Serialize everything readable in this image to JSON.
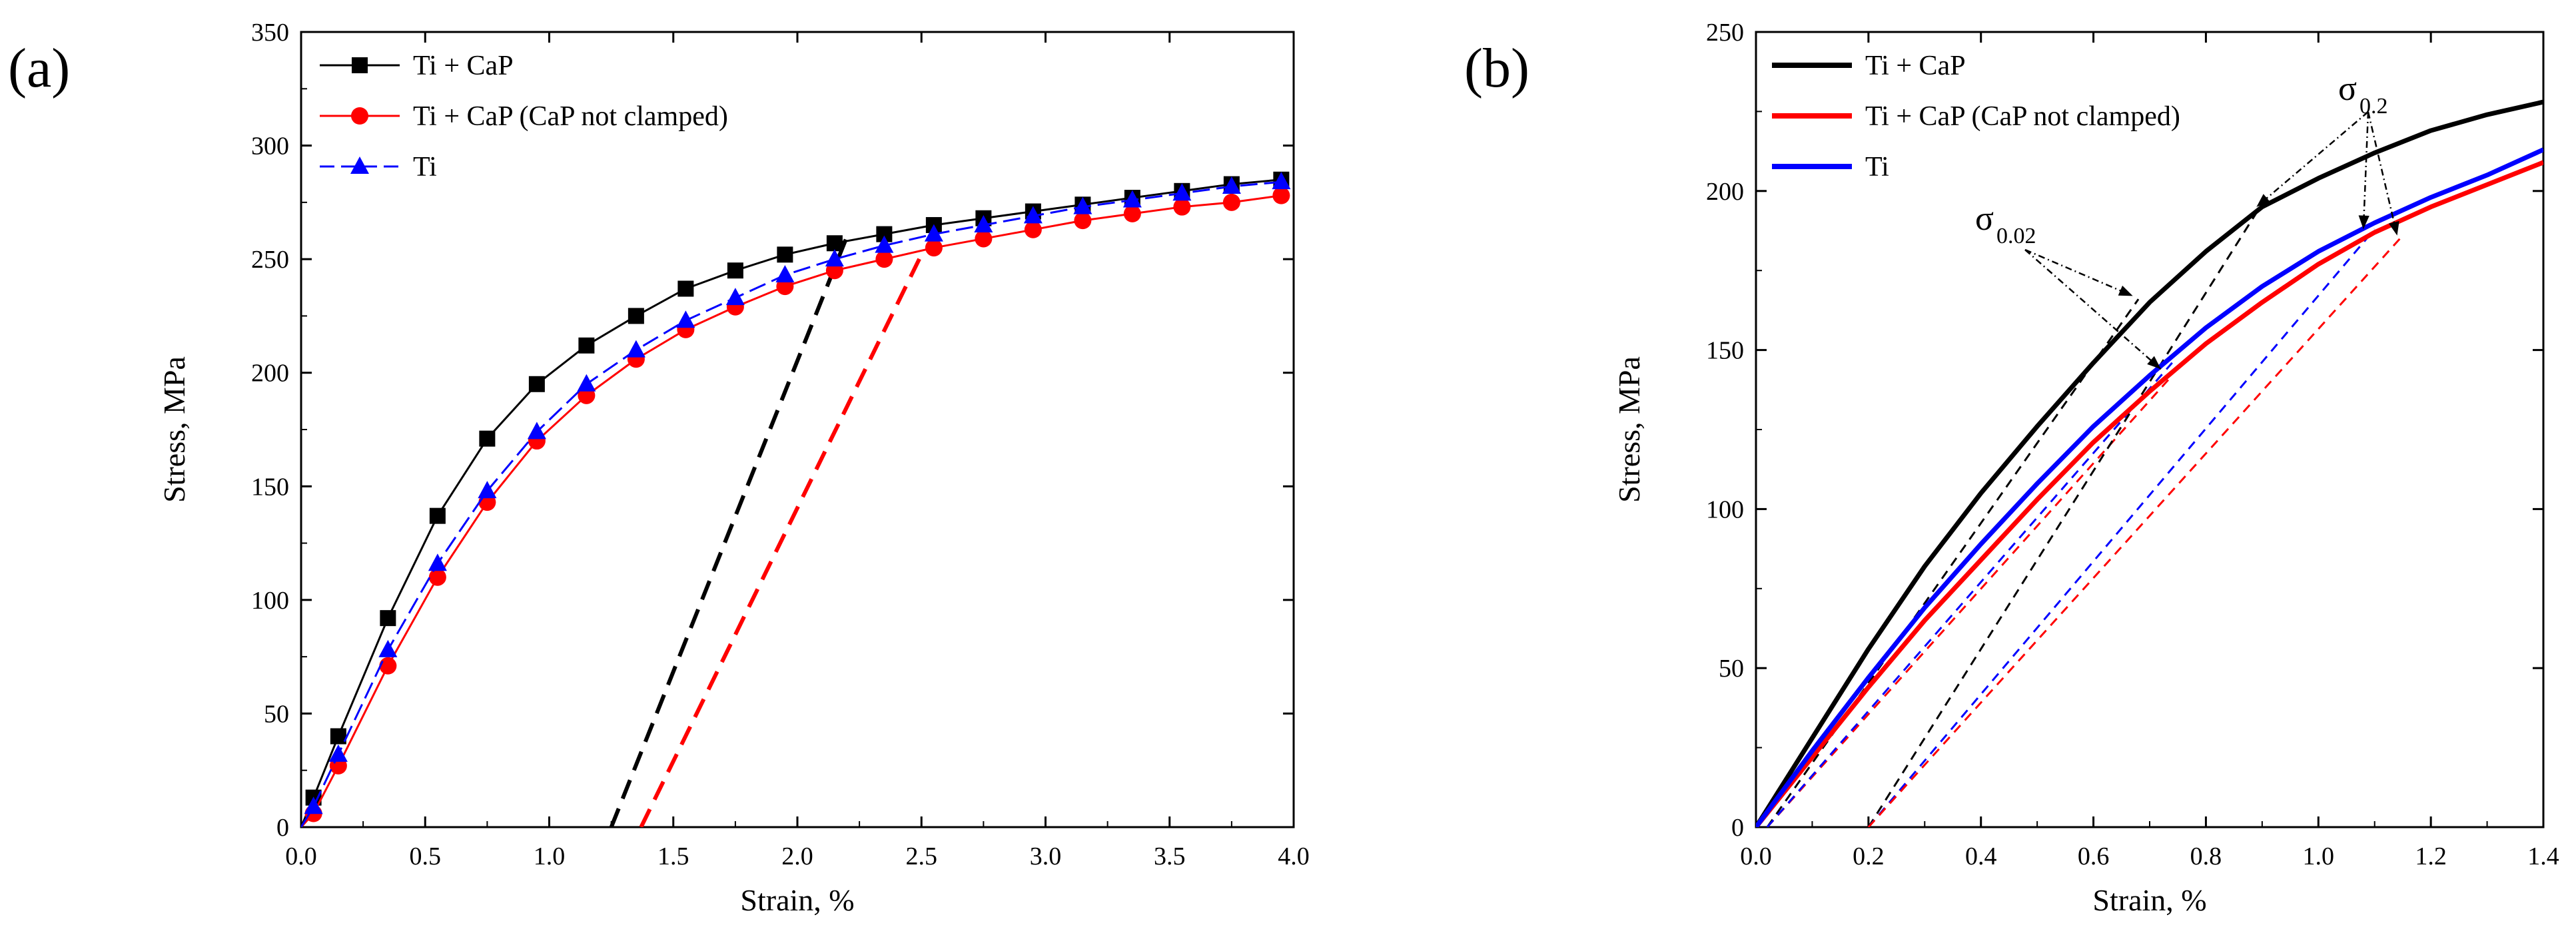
{
  "figure": {
    "panel_a_letter": "(a)",
    "panel_b_letter": "(b)"
  },
  "chart_data": [
    {
      "id": "a",
      "type": "line",
      "title": "",
      "xlabel": "Strain, %",
      "ylabel": "Stress, MPa",
      "xlim": [
        0,
        4.0
      ],
      "ylim": [
        0,
        350
      ],
      "xticks": [
        "0.0",
        "0.5",
        "1.0",
        "1.5",
        "2.0",
        "2.5",
        "3.0",
        "3.5",
        "4.0"
      ],
      "yticks": [
        "0",
        "50",
        "100",
        "150",
        "200",
        "250",
        "300",
        "350"
      ],
      "legend_position": "top-left",
      "series": [
        {
          "name": "Ti + CaP",
          "color": "#000000",
          "marker": "square",
          "dash": "solid",
          "x": [
            0.0,
            0.05,
            0.15,
            0.35,
            0.55,
            0.75,
            0.95,
            1.15,
            1.35,
            1.55,
            1.75,
            1.95,
            2.15,
            2.35,
            2.55,
            2.75,
            2.95,
            3.15,
            3.35,
            3.55,
            3.75,
            3.95
          ],
          "y": [
            0,
            13,
            40,
            92,
            137,
            171,
            195,
            212,
            225,
            237,
            245,
            252,
            257,
            261,
            265,
            268,
            271,
            274,
            277,
            280,
            283,
            285
          ]
        },
        {
          "name": "Ti + CaP (CaP not clamped)",
          "color": "#ff0000",
          "marker": "circle",
          "dash": "solid",
          "x": [
            0.0,
            0.05,
            0.15,
            0.35,
            0.55,
            0.75,
            0.95,
            1.15,
            1.35,
            1.55,
            1.75,
            1.95,
            2.15,
            2.35,
            2.55,
            2.75,
            2.95,
            3.15,
            3.35,
            3.55,
            3.75,
            3.95
          ],
          "y": [
            0,
            6,
            27,
            71,
            110,
            143,
            170,
            190,
            206,
            219,
            229,
            238,
            245,
            250,
            255,
            259,
            263,
            267,
            270,
            273,
            275,
            278
          ]
        },
        {
          "name": "Ti",
          "color": "#0000ff",
          "marker": "triangle",
          "dash": "dashed",
          "x": [
            0.0,
            0.05,
            0.15,
            0.35,
            0.55,
            0.75,
            0.95,
            1.15,
            1.35,
            1.55,
            1.75,
            1.95,
            2.15,
            2.35,
            2.55,
            2.75,
            2.95,
            3.15,
            3.35,
            3.55,
            3.75,
            3.95
          ],
          "y": [
            0,
            9,
            32,
            78,
            116,
            148,
            174,
            195,
            210,
            223,
            233,
            243,
            250,
            256,
            261,
            265,
            269,
            273,
            276,
            279,
            282,
            284
          ]
        }
      ],
      "offset_lines": [
        {
          "color": "#000000",
          "x": [
            1.25,
            2.2
          ],
          "y": [
            0,
            260
          ]
        },
        {
          "color": "#ff0000",
          "x": [
            1.37,
            2.5
          ],
          "y": [
            0,
            252
          ]
        }
      ]
    },
    {
      "id": "b",
      "type": "line",
      "title": "",
      "xlabel": "Strain, %",
      "ylabel": "Stress, MPa",
      "xlim": [
        0,
        1.4
      ],
      "ylim": [
        0,
        250
      ],
      "xticks": [
        "0.0",
        "0.2",
        "0.4",
        "0.6",
        "0.8",
        "1.0",
        "1.2",
        "1.4"
      ],
      "yticks": [
        "0",
        "50",
        "100",
        "150",
        "200",
        "250"
      ],
      "legend_position": "top-left",
      "series": [
        {
          "name": "Ti + CaP",
          "color": "#000000",
          "marker": "none",
          "dash": "solid",
          "x": [
            0.0,
            0.1,
            0.2,
            0.3,
            0.4,
            0.5,
            0.6,
            0.7,
            0.8,
            0.9,
            1.0,
            1.1,
            1.2,
            1.3,
            1.4
          ],
          "y": [
            0,
            28,
            56,
            82,
            105,
            126,
            146,
            165,
            181,
            195,
            204,
            212,
            219,
            224,
            228
          ]
        },
        {
          "name": "Ti + CaP (CaP not clamped)",
          "color": "#ff0000",
          "marker": "none",
          "dash": "solid",
          "x": [
            0.0,
            0.1,
            0.2,
            0.3,
            0.4,
            0.5,
            0.6,
            0.7,
            0.8,
            0.9,
            1.0,
            1.1,
            1.2,
            1.3,
            1.4
          ],
          "y": [
            0,
            22,
            44,
            65,
            84,
            103,
            121,
            137,
            152,
            165,
            177,
            187,
            195,
            202,
            209
          ]
        },
        {
          "name": "Ti",
          "color": "#0000ff",
          "marker": "none",
          "dash": "solid",
          "x": [
            0.0,
            0.1,
            0.2,
            0.3,
            0.4,
            0.5,
            0.6,
            0.7,
            0.8,
            0.9,
            1.0,
            1.1,
            1.2,
            1.3,
            1.4
          ],
          "y": [
            0,
            24,
            47,
            69,
            89,
            108,
            126,
            142,
            157,
            170,
            181,
            190,
            198,
            205,
            213
          ]
        }
      ],
      "offset_lines": [
        {
          "color": "#000000",
          "x": [
            0.02,
            0.68
          ],
          "y": [
            0,
            166
          ]
        },
        {
          "color": "#ff0000",
          "x": [
            0.02,
            0.74
          ],
          "y": [
            0,
            142
          ]
        },
        {
          "color": "#0000ff",
          "x": [
            0.02,
            0.74
          ],
          "y": [
            0,
            146
          ]
        },
        {
          "color": "#000000",
          "x": [
            0.2,
            0.9
          ],
          "y": [
            0,
            196
          ]
        },
        {
          "color": "#0000ff",
          "x": [
            0.2,
            1.1
          ],
          "y": [
            0,
            188
          ]
        },
        {
          "color": "#ff0000",
          "x": [
            0.2,
            1.15
          ],
          "y": [
            0,
            186
          ]
        }
      ],
      "annotations": [
        {
          "label": "σ",
          "subscript": "0.02",
          "targets": [
            {
              "x": 0.67,
              "y": 167
            },
            {
              "x": 0.72,
              "y": 144
            }
          ]
        },
        {
          "label": "σ",
          "subscript": "0.2",
          "targets": [
            {
              "x": 0.89,
              "y": 195
            },
            {
              "x": 1.08,
              "y": 188
            },
            {
              "x": 1.14,
              "y": 186
            }
          ]
        }
      ]
    }
  ]
}
